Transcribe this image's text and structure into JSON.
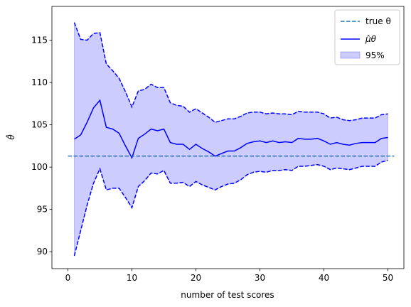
{
  "chart_data": {
    "type": "line",
    "title": "",
    "xlabel": "number of test scores",
    "ylabel": "θ̂",
    "xlim": [
      -2.5,
      52.5
    ],
    "ylim": [
      88.0,
      119.0
    ],
    "xticks": [
      0,
      10,
      20,
      30,
      40,
      50
    ],
    "yticks": [
      90,
      95,
      100,
      105,
      110,
      115
    ],
    "grid": false,
    "legend_position": "top-right",
    "true_theta": 101.3,
    "x": [
      1,
      2,
      3,
      4,
      5,
      6,
      7,
      8,
      9,
      10,
      11,
      12,
      13,
      14,
      15,
      16,
      17,
      18,
      19,
      20,
      21,
      22,
      23,
      24,
      25,
      26,
      27,
      28,
      29,
      30,
      31,
      32,
      33,
      34,
      35,
      36,
      37,
      38,
      39,
      40,
      41,
      42,
      43,
      44,
      45,
      46,
      47,
      48,
      49,
      50
    ],
    "series": [
      {
        "name": "μ̂θ",
        "values": [
          103.3,
          103.8,
          105.3,
          107.0,
          107.9,
          104.7,
          104.5,
          104.0,
          102.5,
          101.1,
          103.4,
          103.9,
          104.5,
          104.3,
          104.5,
          102.9,
          102.7,
          102.7,
          102.1,
          102.7,
          102.2,
          101.8,
          101.3,
          101.6,
          101.9,
          101.9,
          102.3,
          102.8,
          103.0,
          103.1,
          102.9,
          103.1,
          102.9,
          103.0,
          102.9,
          103.4,
          103.3,
          103.3,
          103.4,
          103.1,
          102.7,
          102.9,
          102.7,
          102.6,
          102.8,
          102.9,
          102.9,
          102.9,
          103.4,
          103.5
        ]
      },
      {
        "name": "95% upper",
        "values": [
          117.1,
          115.1,
          115.0,
          115.8,
          115.9,
          112.2,
          111.4,
          110.5,
          108.9,
          107.1,
          109.0,
          109.2,
          109.8,
          109.4,
          109.4,
          107.6,
          107.3,
          107.2,
          106.5,
          106.9,
          106.4,
          105.9,
          105.3,
          105.5,
          105.7,
          105.7,
          106.0,
          106.4,
          106.5,
          106.5,
          106.3,
          106.4,
          106.3,
          106.3,
          106.2,
          106.6,
          106.5,
          106.5,
          106.5,
          106.3,
          105.8,
          105.9,
          105.6,
          105.5,
          105.6,
          105.8,
          105.8,
          105.8,
          106.2,
          106.3
        ]
      },
      {
        "name": "95% lower",
        "values": [
          89.5,
          92.5,
          95.5,
          98.1,
          99.8,
          97.3,
          97.5,
          97.5,
          96.4,
          95.2,
          97.7,
          98.4,
          99.3,
          99.2,
          99.6,
          98.1,
          98.1,
          98.2,
          97.7,
          98.3,
          97.9,
          97.6,
          97.3,
          97.7,
          98.0,
          98.1,
          98.5,
          99.1,
          99.4,
          99.5,
          99.4,
          99.6,
          99.6,
          99.7,
          99.6,
          100.1,
          100.1,
          100.2,
          100.3,
          100.1,
          99.7,
          99.9,
          99.8,
          99.7,
          99.9,
          100.1,
          100.1,
          100.1,
          100.6,
          100.8
        ]
      }
    ],
    "legend": [
      {
        "label": "true θ",
        "style": "dashed-line",
        "color": "#1f77b4"
      },
      {
        "label": "μ̂θ",
        "style": "solid-line",
        "color": "#0000ff"
      },
      {
        "label": "95%",
        "style": "patch",
        "color": "#0000ff"
      }
    ]
  }
}
